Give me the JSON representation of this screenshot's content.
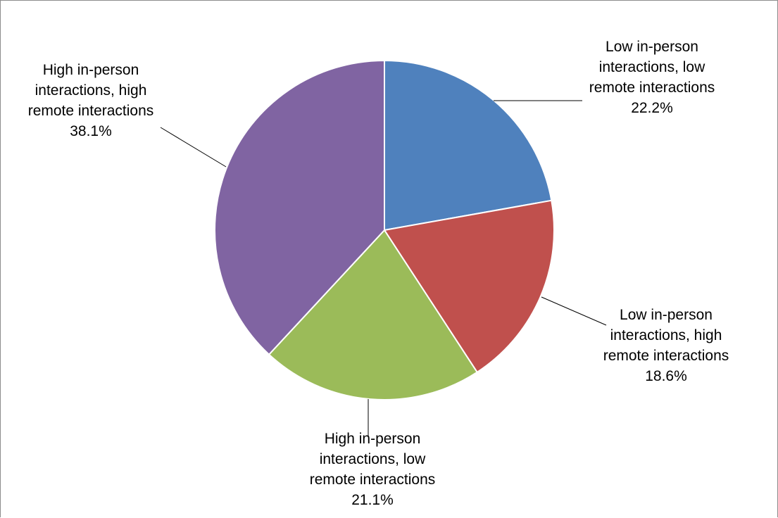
{
  "chart_data": {
    "type": "pie",
    "slices": [
      {
        "label_lines": [
          "Low in-person",
          "interactions, low",
          "remote interactions",
          "22.2%"
        ],
        "value": 22.2,
        "color": "#4f81bd"
      },
      {
        "label_lines": [
          "Low in-person",
          "interactions, high",
          "remote interactions",
          "18.6%"
        ],
        "value": 18.6,
        "color": "#c0504d"
      },
      {
        "label_lines": [
          "High in-person",
          "interactions, low",
          "remote interactions",
          "21.1%"
        ],
        "value": 21.1,
        "color": "#9bbb59"
      },
      {
        "label_lines": [
          "High in-person",
          "interactions, high",
          "remote interactions",
          "38.1%"
        ],
        "value": 38.1,
        "color": "#8064a2"
      }
    ],
    "start_angle": "12 o'clock",
    "direction": "clockwise",
    "legend": "none",
    "data_labels": "outside with leader lines"
  }
}
